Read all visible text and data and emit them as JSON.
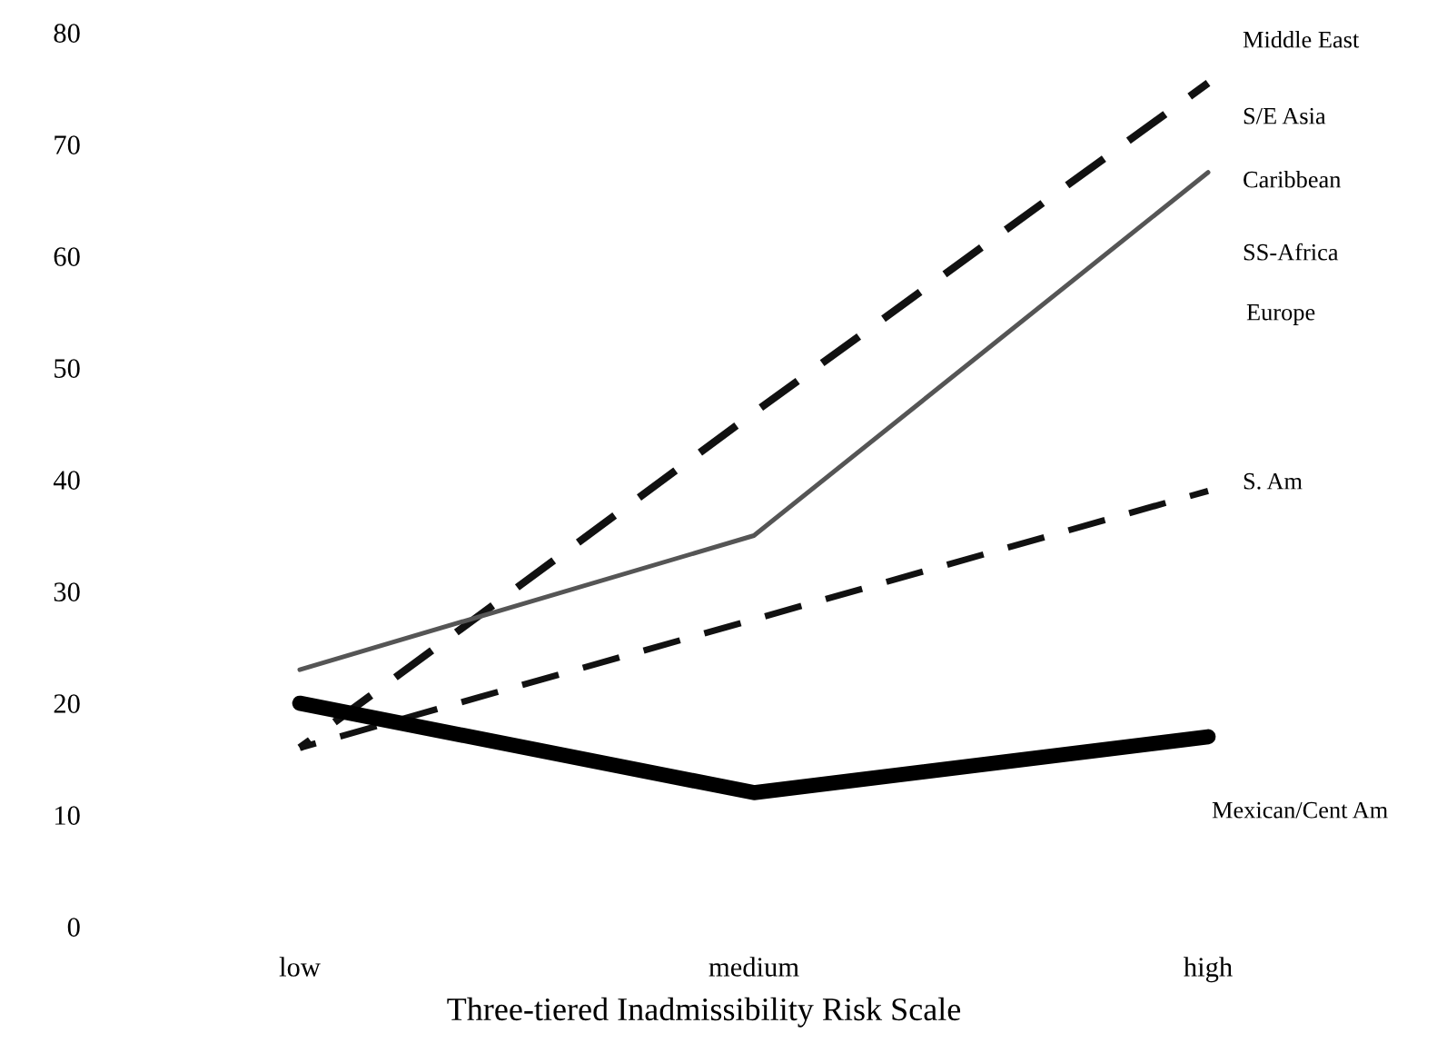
{
  "chart_data": {
    "type": "line",
    "xlabel": "Three-tiered Inadmissibility Risk Scale",
    "categories": [
      "low",
      "medium",
      "high"
    ],
    "series": [
      {
        "color": "#111111",
        "values": [
          16,
          46,
          75.5
        ],
        "line_style": "dashed"
      },
      {
        "color": "#555555",
        "values": [
          23,
          35,
          67.5
        ],
        "line_style": "solid"
      },
      {
        "color": "#111111",
        "values": [
          16,
          27.5,
          39
        ],
        "line_style": "dashed"
      },
      {
        "color": "#000000",
        "values": [
          20,
          12,
          17
        ],
        "line_style": "solid"
      }
    ],
    "ylim": [
      0,
      80
    ],
    "yticks": [
      0,
      10,
      20,
      30,
      40,
      50,
      60,
      70,
      80
    ],
    "grid": false,
    "legend": false,
    "marker": "none",
    "annotations": [
      "Middle East",
      "S/E Asia",
      "Caribbean",
      "SS-Africa",
      "Europe",
      "S. Am",
      "Mexican/Cent Am"
    ]
  }
}
